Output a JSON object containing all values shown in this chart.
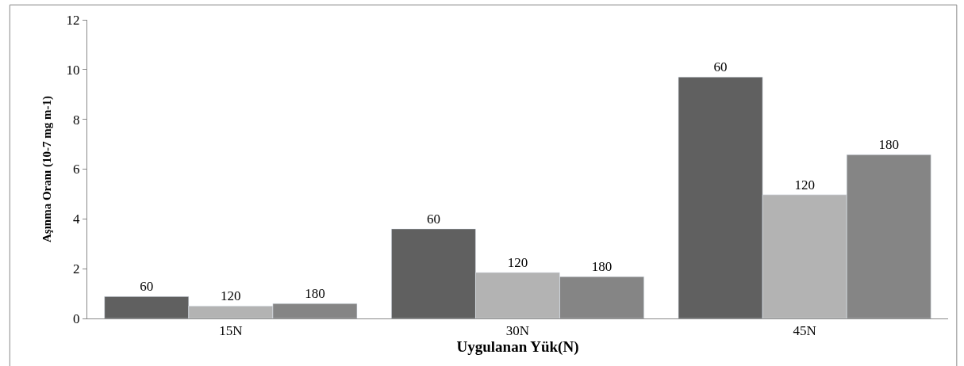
{
  "chart_data": {
    "type": "bar",
    "xlabel": "Uygulanan Yük(N)",
    "ylabel": "Aşınma Oranı (10-7 mg m-1)",
    "categories": [
      "15N",
      "30N",
      "45N"
    ],
    "series": [
      {
        "name": "60",
        "color": "#606060",
        "values": [
          0.88,
          3.6,
          9.7
        ]
      },
      {
        "name": "120",
        "color": "#b3b3b3",
        "values": [
          0.5,
          1.85,
          4.97
        ]
      },
      {
        "name": "180",
        "color": "#858585",
        "values": [
          0.6,
          1.68,
          6.58
        ]
      }
    ],
    "ylim": [
      0,
      12
    ],
    "yticks": [
      0,
      2,
      4,
      6,
      8,
      10,
      12
    ]
  }
}
